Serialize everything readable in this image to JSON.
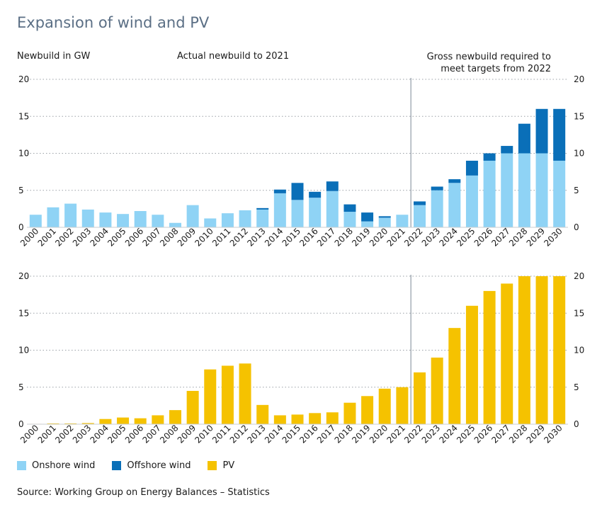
{
  "title": "Expansion of wind and PV",
  "ylabel": "Newbuild in GW",
  "annotation_actual": "Actual newbuild to 2021",
  "annotation_required_line1": "Gross newbuild required to",
  "annotation_required_line2": "meet targets from 2022",
  "source": "Source: Working Group on Energy Balances – Statistics",
  "legend": [
    {
      "label": "Onshore wind",
      "color": "#8fd3f5"
    },
    {
      "label": "Offshore wind",
      "color": "#0a6fb8"
    },
    {
      "label": "PV",
      "color": "#f5c200"
    }
  ],
  "chart_data": [
    {
      "type": "bar",
      "stacked": true,
      "categories": [
        "2000",
        "2001",
        "2002",
        "2003",
        "2004",
        "2005",
        "2006",
        "2007",
        "2008",
        "2009",
        "2010",
        "2011",
        "2012",
        "2013",
        "2014",
        "2015",
        "2016",
        "2017",
        "2018",
        "2019",
        "2020",
        "2021",
        "2022",
        "2023",
        "2024",
        "2025",
        "2026",
        "2027",
        "2028",
        "2029",
        "2030"
      ],
      "ylim": [
        0,
        20
      ],
      "yticks": [
        0,
        5,
        10,
        15,
        20
      ],
      "grid": true,
      "divider_after": "2021",
      "series": [
        {
          "name": "Onshore wind",
          "color": "#8fd3f5",
          "values": [
            1.7,
            2.7,
            3.2,
            2.4,
            2.0,
            1.8,
            2.2,
            1.7,
            0.6,
            3.0,
            1.2,
            1.9,
            2.3,
            2.4,
            4.6,
            3.7,
            4.0,
            4.9,
            2.1,
            0.8,
            1.3,
            1.7,
            3.0,
            5.0,
            6.0,
            7.0,
            9.0,
            10.0,
            10.0,
            10.0,
            9.0
          ]
        },
        {
          "name": "Offshore wind",
          "color": "#0a6fb8",
          "values": [
            0,
            0,
            0,
            0,
            0,
            0,
            0,
            0,
            0,
            0,
            0,
            0,
            0,
            0.2,
            0.5,
            2.3,
            0.8,
            1.3,
            1.0,
            1.2,
            0.2,
            0,
            0.5,
            0.5,
            0.5,
            2.0,
            1.0,
            1.0,
            4.0,
            6.0,
            7.0
          ]
        }
      ]
    },
    {
      "type": "bar",
      "categories": [
        "2000",
        "2001",
        "2002",
        "2003",
        "2004",
        "2005",
        "2006",
        "2007",
        "2008",
        "2009",
        "2010",
        "2011",
        "2012",
        "2013",
        "2014",
        "2015",
        "2016",
        "2017",
        "2018",
        "2019",
        "2020",
        "2021",
        "2022",
        "2023",
        "2024",
        "2025",
        "2026",
        "2027",
        "2028",
        "2029",
        "2030"
      ],
      "ylim": [
        0,
        20
      ],
      "yticks": [
        0,
        5,
        10,
        15,
        20
      ],
      "grid": true,
      "divider_after": "2021",
      "series": [
        {
          "name": "PV",
          "color": "#f5c200",
          "values": [
            0.05,
            0.1,
            0.1,
            0.15,
            0.7,
            0.9,
            0.8,
            1.2,
            1.9,
            4.5,
            7.4,
            7.9,
            8.2,
            2.6,
            1.2,
            1.3,
            1.5,
            1.6,
            2.9,
            3.8,
            4.8,
            5.0,
            7.0,
            9.0,
            13.0,
            16.0,
            18.0,
            19.0,
            20.0,
            20.0,
            20.0
          ]
        }
      ]
    }
  ]
}
